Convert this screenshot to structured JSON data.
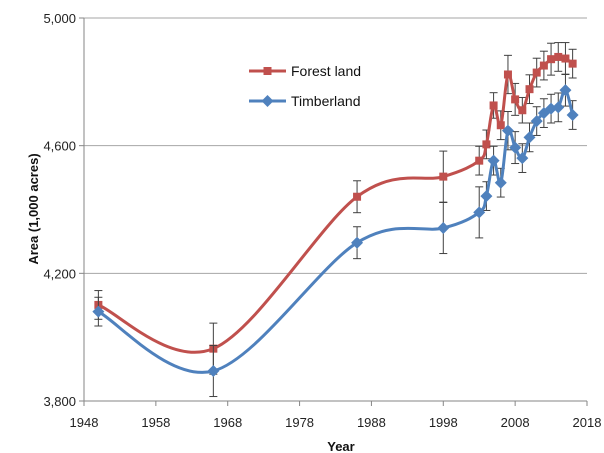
{
  "chart_data": {
    "type": "line",
    "xlabel": "Year",
    "ylabel": "Area (1,000 acres)",
    "xlim": [
      1948,
      2018
    ],
    "ylim": [
      3800,
      5000
    ],
    "x_ticks": [
      1948,
      1958,
      1968,
      1978,
      1988,
      1998,
      2008,
      2018
    ],
    "y_ticks": [
      3800,
      4200,
      4600,
      5000
    ],
    "y_tick_labels": [
      "3,800",
      "4,200",
      "4,600",
      "5,000"
    ],
    "grid": "horizontal",
    "legend_position": "upper-left",
    "series": [
      {
        "name": "Forest land",
        "color": "#C0504D",
        "marker": "square",
        "points": [
          {
            "x": 1950,
            "y": 4101,
            "err": 45
          },
          {
            "x": 1966,
            "y": 3964,
            "err": 80
          },
          {
            "x": 1986,
            "y": 4440,
            "err": 50
          },
          {
            "x": 1998,
            "y": 4503,
            "err": 80
          },
          {
            "x": 2003,
            "y": 4553,
            "err": 45
          },
          {
            "x": 2004,
            "y": 4604,
            "err": 45
          },
          {
            "x": 2005,
            "y": 4726,
            "err": 40
          },
          {
            "x": 2006,
            "y": 4664,
            "err": 45
          },
          {
            "x": 2007,
            "y": 4823,
            "err": 60
          },
          {
            "x": 2008,
            "y": 4745,
            "err": 50
          },
          {
            "x": 2009,
            "y": 4711,
            "err": 40
          },
          {
            "x": 2010,
            "y": 4777,
            "err": 45
          },
          {
            "x": 2011,
            "y": 4829,
            "err": 45
          },
          {
            "x": 2012,
            "y": 4851,
            "err": 45
          },
          {
            "x": 2013,
            "y": 4871,
            "err": 50
          },
          {
            "x": 2014,
            "y": 4878,
            "err": 45
          },
          {
            "x": 2015,
            "y": 4873,
            "err": 50
          },
          {
            "x": 2016,
            "y": 4857,
            "err": 45
          }
        ]
      },
      {
        "name": "Timberland",
        "color": "#4F81BD",
        "marker": "diamond",
        "points": [
          {
            "x": 1950,
            "y": 4080,
            "err": 45
          },
          {
            "x": 1966,
            "y": 3894,
            "err": 80
          },
          {
            "x": 1986,
            "y": 4296,
            "err": 50
          },
          {
            "x": 1998,
            "y": 4342,
            "err": 80
          },
          {
            "x": 2003,
            "y": 4391,
            "err": 80
          },
          {
            "x": 2004,
            "y": 4442,
            "err": 45
          },
          {
            "x": 2005,
            "y": 4553,
            "err": 45
          },
          {
            "x": 2006,
            "y": 4484,
            "err": 45
          },
          {
            "x": 2007,
            "y": 4647,
            "err": 60
          },
          {
            "x": 2008,
            "y": 4594,
            "err": 50
          },
          {
            "x": 2009,
            "y": 4561,
            "err": 45
          },
          {
            "x": 2010,
            "y": 4626,
            "err": 45
          },
          {
            "x": 2011,
            "y": 4677,
            "err": 45
          },
          {
            "x": 2012,
            "y": 4702,
            "err": 45
          },
          {
            "x": 2013,
            "y": 4716,
            "err": 45
          },
          {
            "x": 2014,
            "y": 4720,
            "err": 45
          },
          {
            "x": 2015,
            "y": 4774,
            "err": 50
          },
          {
            "x": 2016,
            "y": 4696,
            "err": 45
          }
        ]
      }
    ]
  }
}
